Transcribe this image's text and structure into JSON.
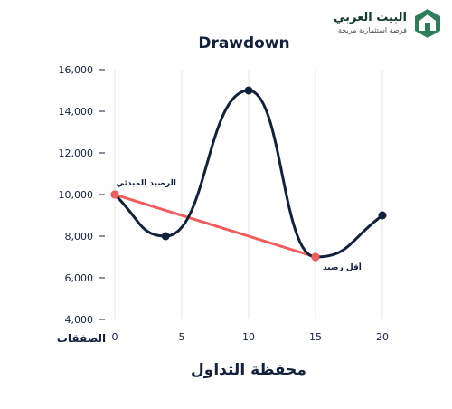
{
  "brand": {
    "name": "البيت العربي",
    "tagline": "فرصة استثمارية مربحة",
    "logo_icon": "house-logo-icon",
    "color": "#2e7d5b"
  },
  "chart_data": {
    "type": "line",
    "title": "Drawdown",
    "xlabel": "محفظة التداول",
    "x_axis_name": "الصفقات",
    "ylabel": "",
    "xlim": [
      0,
      20
    ],
    "ylim": [
      4000,
      16000
    ],
    "x_ticks": [
      0,
      5,
      10,
      15,
      20
    ],
    "y_ticks": [
      4000,
      6000,
      8000,
      10000,
      12000,
      14000,
      16000
    ],
    "y_tick_labels": [
      "4,000",
      "6,000",
      "8,000",
      "10,000",
      "12,000",
      "14,000",
      "16,000"
    ],
    "grid": "vertical",
    "series": [
      {
        "color": "#14213d",
        "smooth": true,
        "x": [
          0,
          3.8,
          10,
          15,
          20
        ],
        "y": [
          10000,
          8000,
          15000,
          7000,
          9000
        ]
      }
    ],
    "drawdown_line": {
      "color": "#f25c5c",
      "from": {
        "x": 0,
        "y": 10000,
        "label": "الرصيد المبدئي"
      },
      "to": {
        "x": 15,
        "y": 7000,
        "label": "أقل رصيد"
      }
    }
  }
}
